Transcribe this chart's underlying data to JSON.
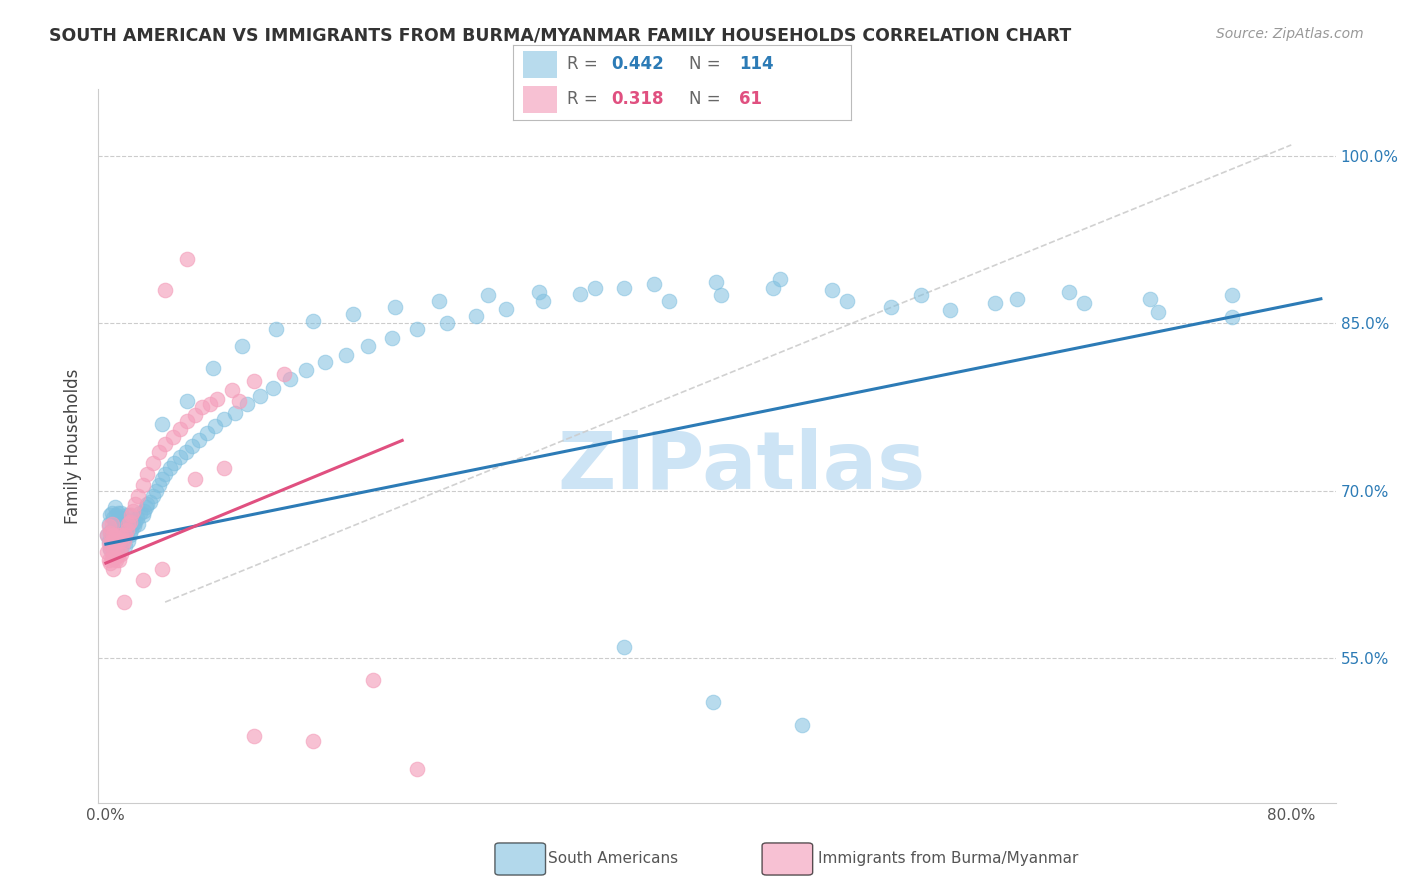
{
  "title": "SOUTH AMERICAN VS IMMIGRANTS FROM BURMA/MYANMAR FAMILY HOUSEHOLDS CORRELATION CHART",
  "source": "Source: ZipAtlas.com",
  "ylabel": "Family Households",
  "right_yticks": [
    0.55,
    0.7,
    0.85,
    1.0
  ],
  "right_yticklabels": [
    "55.0%",
    "70.0%",
    "85.0%",
    "100.0%"
  ],
  "bottom_xticks": [
    0.0,
    0.1,
    0.2,
    0.3,
    0.4,
    0.5,
    0.6,
    0.7,
    0.8
  ],
  "bottom_xticklabels": [
    "0.0%",
    "",
    "",
    "",
    "",
    "",
    "",
    "",
    "80.0%"
  ],
  "xlim": [
    -0.005,
    0.83
  ],
  "ylim": [
    0.42,
    1.06
  ],
  "blue_color": "#7fbfdf",
  "pink_color": "#f4a0bc",
  "blue_line_color": "#2c7bb6",
  "pink_line_color": "#e05080",
  "gray_line_color": "#cccccc",
  "legend_blue_R": "0.442",
  "legend_blue_N": "114",
  "legend_pink_R": "0.318",
  "legend_pink_N": "61",
  "watermark": "ZIPatlas",
  "watermark_color": "#cde4f5",
  "blue_line_x0": 0.0,
  "blue_line_y0": 0.652,
  "blue_line_x1": 0.82,
  "blue_line_y1": 0.872,
  "pink_line_x0": 0.0,
  "pink_line_y0": 0.635,
  "pink_line_x1": 0.2,
  "pink_line_y1": 0.745,
  "gray_line_x0": 0.04,
  "gray_line_y0": 0.6,
  "gray_line_x1": 0.8,
  "gray_line_y1": 1.01,
  "blue_scatter_x": [
    0.001,
    0.002,
    0.002,
    0.003,
    0.003,
    0.003,
    0.004,
    0.004,
    0.004,
    0.005,
    0.005,
    0.005,
    0.006,
    0.006,
    0.006,
    0.007,
    0.007,
    0.007,
    0.008,
    0.008,
    0.008,
    0.009,
    0.009,
    0.01,
    0.01,
    0.01,
    0.011,
    0.011,
    0.012,
    0.012,
    0.013,
    0.013,
    0.014,
    0.014,
    0.015,
    0.015,
    0.016,
    0.016,
    0.017,
    0.018,
    0.019,
    0.02,
    0.021,
    0.022,
    0.023,
    0.025,
    0.026,
    0.027,
    0.028,
    0.03,
    0.032,
    0.034,
    0.036,
    0.038,
    0.04,
    0.043,
    0.046,
    0.05,
    0.054,
    0.058,
    0.063,
    0.068,
    0.074,
    0.08,
    0.087,
    0.095,
    0.104,
    0.113,
    0.124,
    0.135,
    0.148,
    0.162,
    0.177,
    0.193,
    0.21,
    0.23,
    0.25,
    0.27,
    0.295,
    0.32,
    0.35,
    0.38,
    0.415,
    0.45,
    0.49,
    0.53,
    0.57,
    0.615,
    0.66,
    0.71,
    0.76,
    0.038,
    0.055,
    0.072,
    0.092,
    0.115,
    0.14,
    0.167,
    0.195,
    0.225,
    0.258,
    0.292,
    0.33,
    0.37,
    0.412,
    0.455,
    0.5,
    0.55,
    0.6,
    0.65,
    0.705,
    0.76,
    0.35,
    0.41,
    0.47
  ],
  "blue_scatter_y": [
    0.66,
    0.655,
    0.67,
    0.648,
    0.663,
    0.678,
    0.65,
    0.665,
    0.68,
    0.645,
    0.66,
    0.675,
    0.655,
    0.67,
    0.685,
    0.648,
    0.663,
    0.678,
    0.65,
    0.665,
    0.68,
    0.66,
    0.675,
    0.648,
    0.665,
    0.68,
    0.655,
    0.67,
    0.66,
    0.675,
    0.65,
    0.665,
    0.66,
    0.678,
    0.655,
    0.673,
    0.66,
    0.678,
    0.665,
    0.67,
    0.668,
    0.672,
    0.675,
    0.67,
    0.68,
    0.678,
    0.682,
    0.685,
    0.688,
    0.69,
    0.695,
    0.7,
    0.705,
    0.71,
    0.715,
    0.72,
    0.725,
    0.73,
    0.735,
    0.74,
    0.745,
    0.752,
    0.758,
    0.764,
    0.77,
    0.778,
    0.785,
    0.792,
    0.8,
    0.808,
    0.815,
    0.822,
    0.83,
    0.837,
    0.845,
    0.85,
    0.857,
    0.863,
    0.87,
    0.876,
    0.882,
    0.87,
    0.875,
    0.882,
    0.88,
    0.865,
    0.862,
    0.872,
    0.868,
    0.86,
    0.856,
    0.76,
    0.78,
    0.81,
    0.83,
    0.845,
    0.852,
    0.858,
    0.865,
    0.87,
    0.875,
    0.878,
    0.882,
    0.885,
    0.887,
    0.89,
    0.87,
    0.875,
    0.868,
    0.878,
    0.872,
    0.875,
    0.56,
    0.51,
    0.49
  ],
  "pink_scatter_x": [
    0.001,
    0.001,
    0.002,
    0.002,
    0.002,
    0.003,
    0.003,
    0.003,
    0.004,
    0.004,
    0.004,
    0.005,
    0.005,
    0.005,
    0.006,
    0.006,
    0.007,
    0.007,
    0.008,
    0.008,
    0.009,
    0.009,
    0.01,
    0.01,
    0.011,
    0.012,
    0.013,
    0.014,
    0.015,
    0.016,
    0.017,
    0.018,
    0.02,
    0.022,
    0.025,
    0.028,
    0.032,
    0.036,
    0.04,
    0.045,
    0.05,
    0.055,
    0.06,
    0.065,
    0.075,
    0.085,
    0.1,
    0.12,
    0.04,
    0.055,
    0.07,
    0.09,
    0.012,
    0.025,
    0.038,
    0.06,
    0.08,
    0.1,
    0.14,
    0.18,
    0.21
  ],
  "pink_scatter_y": [
    0.645,
    0.66,
    0.638,
    0.652,
    0.668,
    0.635,
    0.648,
    0.662,
    0.64,
    0.655,
    0.67,
    0.63,
    0.645,
    0.66,
    0.64,
    0.658,
    0.638,
    0.655,
    0.642,
    0.66,
    0.638,
    0.655,
    0.643,
    0.66,
    0.65,
    0.655,
    0.66,
    0.665,
    0.67,
    0.672,
    0.678,
    0.682,
    0.688,
    0.695,
    0.705,
    0.715,
    0.725,
    0.735,
    0.742,
    0.748,
    0.755,
    0.762,
    0.768,
    0.775,
    0.782,
    0.79,
    0.798,
    0.805,
    0.88,
    0.908,
    0.778,
    0.78,
    0.6,
    0.62,
    0.63,
    0.71,
    0.72,
    0.48,
    0.475,
    0.53,
    0.45
  ]
}
